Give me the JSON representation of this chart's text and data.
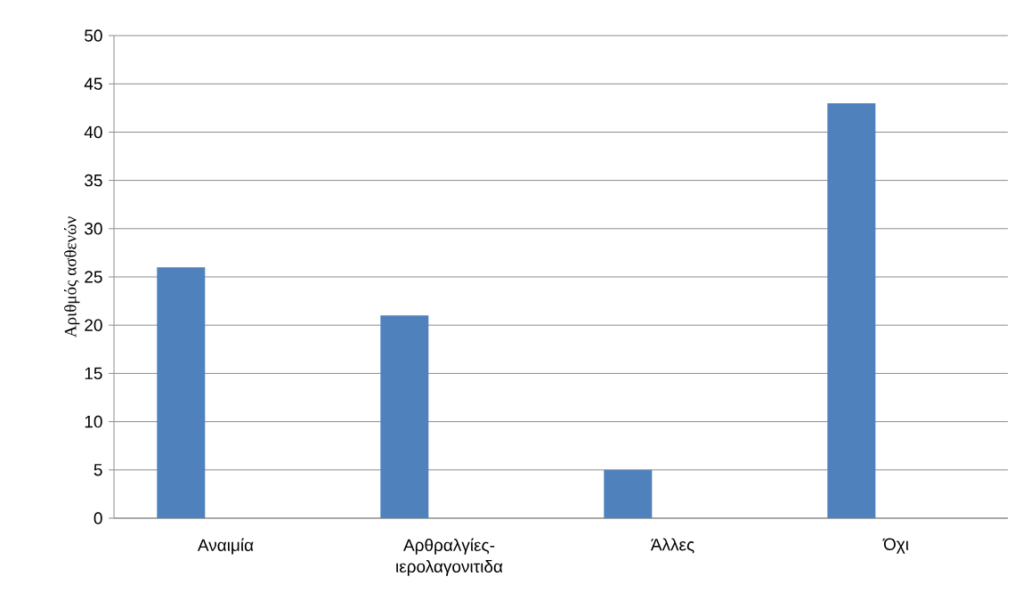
{
  "chart_data": {
    "type": "bar",
    "ylabel": "Αριθμός ασθενών",
    "categories": [
      "Αναιμία",
      "Αρθραλγίες-ιερολαγονιτιδα",
      "Άλλες",
      "Όχι"
    ],
    "values": [
      26,
      21,
      5,
      43
    ],
    "color": "#4f81bd",
    "ylim": [
      0,
      50
    ],
    "yticks": [
      0,
      5,
      10,
      15,
      20,
      25,
      30,
      35,
      40,
      45,
      50
    ],
    "grid": "y"
  }
}
